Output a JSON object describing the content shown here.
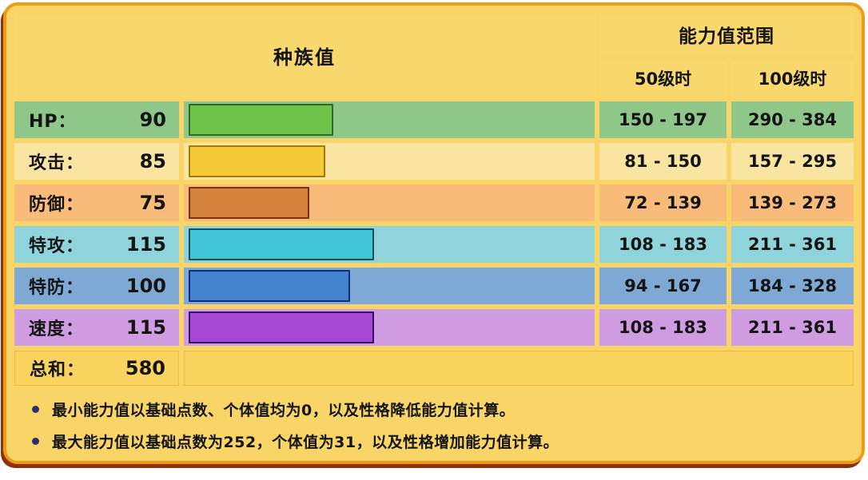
{
  "header": {
    "base_stats": "种族值",
    "range": "能力值范围",
    "level50": "50级时",
    "level100": "100级时"
  },
  "rows": [
    {
      "label": "HP：",
      "value": "90",
      "range50": "150 - 197",
      "range100": "290 - 384",
      "colors": {
        "row": "#8fc78b",
        "bar": "#6fc24a",
        "bar_border": "#2f6b1c"
      }
    },
    {
      "label": "攻击：",
      "value": "85",
      "range50": "81 - 150",
      "range100": "157 - 295",
      "colors": {
        "row": "#f9e4a2",
        "bar": "#f4ca39",
        "bar_border": "#a07c0e"
      }
    },
    {
      "label": "防御：",
      "value": "75",
      "range50": "72 - 139",
      "range100": "139 - 273",
      "colors": {
        "row": "#f8bb79",
        "bar": "#d5823d",
        "bar_border": "#7c3012"
      }
    },
    {
      "label": "特攻：",
      "value": "115",
      "range50": "108 - 183",
      "range100": "211 - 361",
      "colors": {
        "row": "#90d4db",
        "bar": "#40c6d7",
        "bar_border": "#0f4f5e"
      }
    },
    {
      "label": "特防：",
      "value": "100",
      "range50": "94 - 167",
      "range100": "184 - 328",
      "colors": {
        "row": "#7ea9d5",
        "bar": "#4583cf",
        "bar_border": "#0d2f7a"
      }
    },
    {
      "label": "速度：",
      "value": "115",
      "range50": "108 - 183",
      "range100": "211 - 361",
      "colors": {
        "row": "#cf9ce2",
        "bar": "#a748d5",
        "bar_border": "#330a63"
      }
    }
  ],
  "total": {
    "label": "总和：",
    "value": "580"
  },
  "notes": [
    "最小能力值以基础点数、个体值均为0，以及性格降低能力值计算。",
    "最大能力值以基础点数为252，个体值为31，以及性格增加能力值计算。"
  ],
  "palette": {
    "card_background": "#f8d566",
    "card_border": "#ee9c15",
    "card_shadow": "#8f310f",
    "header_cell": "#f9d86e",
    "total_row": "#f8d45f",
    "bullet": "#2b2f72",
    "text": "#141414"
  },
  "chart_data": {
    "type": "bar",
    "title": "种族值",
    "categories": [
      "HP",
      "攻击",
      "防御",
      "特攻",
      "特防",
      "速度"
    ],
    "values": [
      90,
      85,
      75,
      115,
      100,
      115
    ],
    "total": 580,
    "bar_scale_max": 255,
    "series": [
      {
        "name": "种族值",
        "values": [
          90,
          85,
          75,
          115,
          100,
          115
        ]
      },
      {
        "name": "50级时范围",
        "values": [
          "150 - 197",
          "81 - 150",
          "72 - 139",
          "108 - 183",
          "94 - 167",
          "108 - 183"
        ]
      },
      {
        "name": "100级时范围",
        "values": [
          "290 - 384",
          "157 - 295",
          "139 - 273",
          "211 - 361",
          "184 - 328",
          "211 - 361"
        ]
      }
    ],
    "legend_position": "none",
    "grid": false
  }
}
